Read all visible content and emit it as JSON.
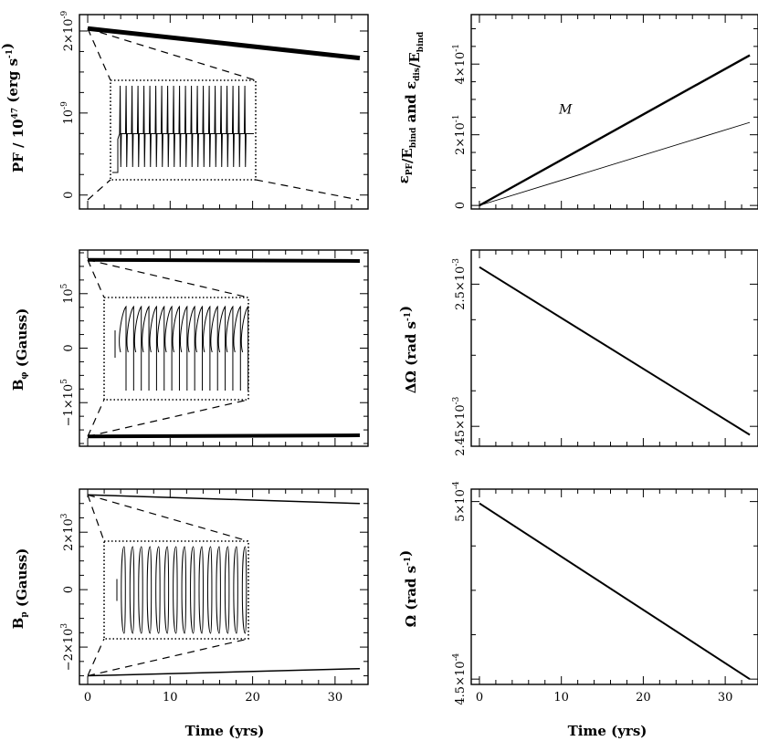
{
  "chart_data": [
    {
      "id": "pf",
      "type": "line",
      "ylabel": "PF / 10^47 (erg s^-1)",
      "xlabel": "",
      "xlim": [
        -1,
        34
      ],
      "ylim": [
        -1.7e-10,
        2.2e-09
      ],
      "xticks": [
        0,
        10,
        20,
        30
      ],
      "xticklabels": [
        "",
        "",
        "",
        ""
      ],
      "yticks": [
        0,
        1e-09,
        2e-09
      ],
      "yticklabels": [
        "0",
        "10^-9",
        "2×10^-9"
      ],
      "series": [
        {
          "name": "PF",
          "x": [
            0,
            33
          ],
          "y": [
            2.03e-09,
            1.67e-09
          ],
          "width": 5
        }
      ],
      "inset": {
        "series": [
          {
            "name": "PF detail",
            "pattern": "pulses",
            "count": 22
          }
        ]
      }
    },
    {
      "id": "eps",
      "type": "line",
      "ylabel": "ε_PF/E_bind and ε_dis/E_bind",
      "xlabel": "",
      "xlim": [
        -1,
        34
      ],
      "ylim": [
        -0.1,
        5.4
      ],
      "xticks": [
        0,
        10,
        20,
        30
      ],
      "xticklabels": [
        "",
        "",
        "",
        ""
      ],
      "yticks": [
        0,
        2,
        4
      ],
      "yticklabels": [
        "0",
        "2×10^-1",
        "4×10^-1"
      ],
      "series": [
        {
          "name": "dis",
          "x": [
            0,
            33
          ],
          "y": [
            0,
            4.25
          ],
          "width": 2.4
        },
        {
          "name": "PF",
          "x": [
            0,
            33
          ],
          "y": [
            0,
            2.35
          ],
          "width": 0.9
        }
      ],
      "annotations": [
        {
          "text": "M",
          "x": 10.5,
          "y": 2.6
        }
      ]
    },
    {
      "id": "bphi",
      "type": "line",
      "ylabel": "B_φ (Gauss)",
      "xlabel": "",
      "xlim": [
        -1,
        34
      ],
      "ylim": [
        -180000.0,
        180000.0
      ],
      "xticks": [
        0,
        10,
        20,
        30
      ],
      "xticklabels": [
        "",
        "",
        "",
        ""
      ],
      "yticks": [
        -100000,
        0,
        100000
      ],
      "yticklabels": [
        "−1×10^5",
        "0",
        "10^5"
      ],
      "series": [
        {
          "name": "upper envelope",
          "x": [
            0,
            33
          ],
          "y": [
            162000,
            160000
          ],
          "width": 4
        },
        {
          "name": "lower envelope",
          "x": [
            0,
            33
          ],
          "y": [
            -162000,
            -160000
          ],
          "width": 4
        }
      ],
      "inset": {
        "series": [
          {
            "name": "B_phi detail",
            "pattern": "hooks",
            "count": 17
          }
        ]
      }
    },
    {
      "id": "domega",
      "type": "line",
      "ylabel": "ΔΩ (rad s^-1)",
      "xlabel": "",
      "xlim": [
        -1,
        34
      ],
      "ylim": [
        0.002443,
        0.002512
      ],
      "xticks": [
        0,
        10,
        20,
        30
      ],
      "xticklabels": [
        "",
        "",
        "",
        ""
      ],
      "yticks": [
        0.00245,
        0.0025
      ],
      "yticklabels": [
        "2.45×10^-3",
        "2.5×10^-3"
      ],
      "series": [
        {
          "name": "ΔΩ",
          "x": [
            0,
            33
          ],
          "y": [
            0.002506,
            0.002447
          ],
          "width": 2
        }
      ]
    },
    {
      "id": "bp",
      "type": "line",
      "ylabel": "B_p (Gauss)",
      "xlabel": "Time (yrs)",
      "xlim": [
        -1,
        34
      ],
      "ylim": [
        -3300,
        3500
      ],
      "xticks": [
        0,
        10,
        20,
        30
      ],
      "xticklabels": [
        "0",
        "10",
        "20",
        "30"
      ],
      "yticks": [
        -2000,
        0,
        2000
      ],
      "yticklabels": [
        "−2×10^3",
        "0",
        "2×10^3"
      ],
      "series": [
        {
          "name": "upper envelope",
          "x": [
            0,
            33
          ],
          "y": [
            3300,
            3000
          ],
          "width": 1.5
        },
        {
          "name": "lower envelope",
          "x": [
            0,
            33
          ],
          "y": [
            -3000,
            -2750
          ],
          "width": 1.5
        }
      ],
      "inset": {
        "series": [
          {
            "name": "B_p detail",
            "pattern": "loops",
            "count": 15
          }
        ]
      }
    },
    {
      "id": "omega",
      "type": "line",
      "ylabel": "Ω (rad s^-1)",
      "xlabel": "Time (yrs)",
      "xlim": [
        -1,
        34
      ],
      "ylim": [
        0.0004485,
        0.0005035
      ],
      "xticks": [
        0,
        10,
        20,
        30
      ],
      "xticklabels": [
        "0",
        "10",
        "20",
        "30"
      ],
      "yticks": [
        0.00045,
        0.0005
      ],
      "yticklabels": [
        "4.5×10^-4",
        "5×10^-4"
      ],
      "series": [
        {
          "name": "Ω",
          "x": [
            0,
            33
          ],
          "y": [
            0.0004995,
            0.00045
          ],
          "width": 2
        }
      ]
    }
  ]
}
